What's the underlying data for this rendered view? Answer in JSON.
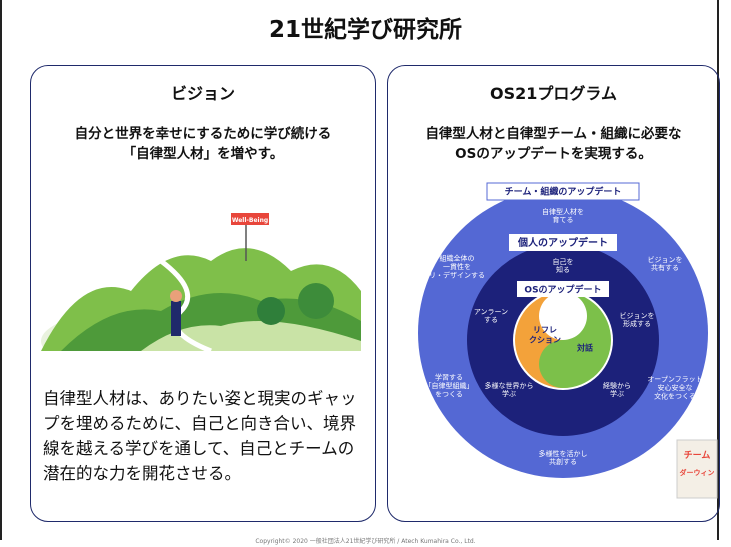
{
  "header": {
    "title": "21世紀学び研究所"
  },
  "vision": {
    "heading": "ビジョン",
    "lead": [
      "自分と世界を幸せにするために学び続ける",
      "「自律型人材」を増やす。"
    ],
    "flag": "Well-Being",
    "body": "自律型人材は、ありたい姿と現実のギャップを埋めるために、自己と向き合い、境界線を越える学びを通して、自己とチームの潜在的な力を開花させる。"
  },
  "program": {
    "heading": "OS21プログラム",
    "lead": [
      "自律型人材と自律型チーム・組織に必要な",
      "OSのアップデートを実現する。"
    ],
    "diagram": {
      "team_update": "チーム・組織のアップデート",
      "self_update": "個人のアップデート",
      "os_update": "OSのアップデート",
      "outer_labels": [
        [
          "自律型人材を",
          "育てる"
        ],
        [
          "ビジョンを",
          "共有する"
        ],
        [
          "組織全体の",
          "一貫性を",
          "リ・デザインする"
        ],
        [
          "オープンフラット",
          "安心安全な",
          "文化をつくる"
        ],
        [
          "学習する",
          "「自律型組織」",
          "をつくる"
        ],
        [
          "多様性を活かし",
          "共創する"
        ]
      ],
      "middle_labels": [
        [
          "自己を",
          "知る"
        ],
        [
          "アンラーン",
          "する"
        ],
        [
          "ビジョンを",
          "形成する"
        ],
        [
          "多様な世界から",
          "学ぶ"
        ],
        [
          "経験から",
          "学ぶ"
        ]
      ],
      "core": [
        [
          "リフレ",
          "クション"
        ],
        [
          "対話"
        ]
      ]
    },
    "book": [
      "チーム",
      "ダーウィン"
    ]
  },
  "footer": {
    "copyright": "Copyright© 2020 一般社団法人21世紀学び研究所 / Atech Kumahira Co., Ltd."
  }
}
